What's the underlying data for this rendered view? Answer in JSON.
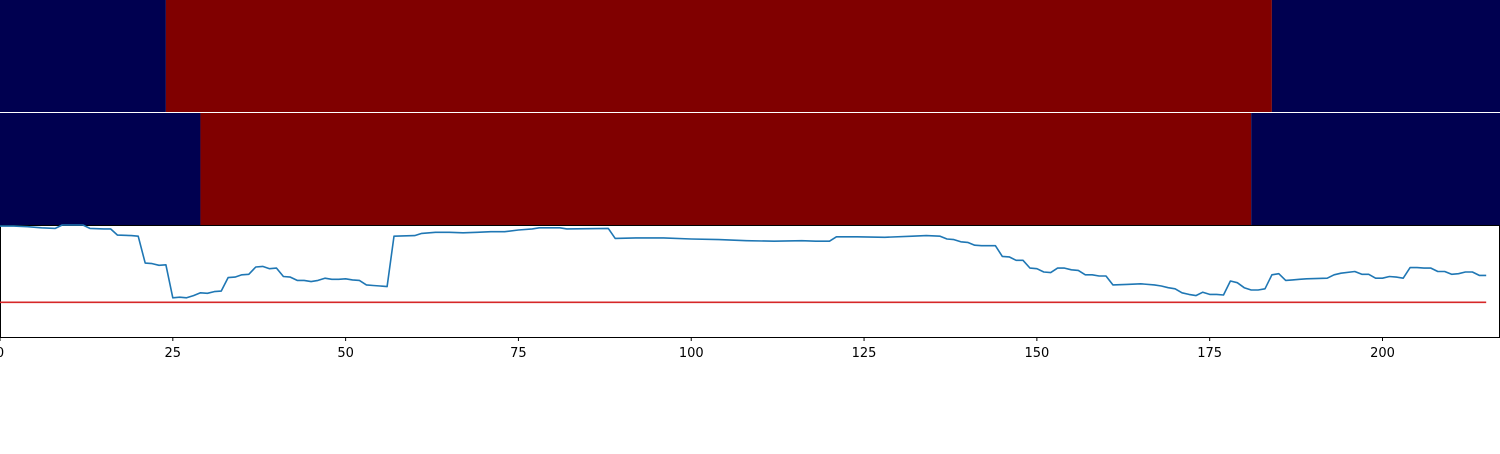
{
  "chart_data": {
    "type": "line",
    "title": "",
    "xlabel": "",
    "ylabel": "",
    "xlim": [
      0,
      217
    ],
    "ylim": [
      0,
      1
    ],
    "x_ticks": [
      {
        "value": 0,
        "label": "0"
      },
      {
        "value": 25,
        "label": "25"
      },
      {
        "value": 50,
        "label": "50"
      },
      {
        "value": 75,
        "label": "75"
      },
      {
        "value": 100,
        "label": "100"
      },
      {
        "value": 125,
        "label": "125"
      },
      {
        "value": 150,
        "label": "150"
      },
      {
        "value": 175,
        "label": "175"
      },
      {
        "value": 200,
        "label": "200"
      }
    ],
    "grid": false,
    "legend": "none",
    "state_bands": [
      {
        "segments": [
          {
            "start": 0,
            "end": 24,
            "state": "off",
            "color": "#000050"
          },
          {
            "start": 24,
            "end": 184,
            "state": "on",
            "color": "#800000"
          },
          {
            "start": 184,
            "end": 217,
            "state": "off",
            "color": "#000050"
          }
        ]
      },
      {
        "segments": [
          {
            "start": 0,
            "end": 29,
            "state": "off",
            "color": "#000050"
          },
          {
            "start": 29,
            "end": 181,
            "state": "on",
            "color": "#800000"
          },
          {
            "start": 181,
            "end": 217,
            "state": "off",
            "color": "#000050"
          }
        ]
      }
    ],
    "threshold": {
      "value": 0.31,
      "color": "#d62728"
    },
    "series": [
      {
        "color": "#1f77b4",
        "points": [
          [
            0,
            0.99
          ],
          [
            2,
            0.99
          ],
          [
            4,
            0.985
          ],
          [
            6,
            0.975
          ],
          [
            8,
            0.97
          ],
          [
            9,
            1.0
          ],
          [
            12,
            1.0
          ],
          [
            13,
            0.97
          ],
          [
            15,
            0.965
          ],
          [
            16,
            0.965
          ],
          [
            17,
            0.91
          ],
          [
            19,
            0.905
          ],
          [
            20,
            0.9
          ],
          [
            21,
            0.66
          ],
          [
            22,
            0.655
          ],
          [
            23,
            0.64
          ],
          [
            24,
            0.645
          ],
          [
            25,
            0.35
          ],
          [
            26,
            0.355
          ],
          [
            27,
            0.35
          ],
          [
            28,
            0.37
          ],
          [
            29,
            0.395
          ],
          [
            30,
            0.39
          ],
          [
            31,
            0.405
          ],
          [
            32,
            0.41
          ],
          [
            33,
            0.53
          ],
          [
            34,
            0.535
          ],
          [
            35,
            0.555
          ],
          [
            36,
            0.56
          ],
          [
            37,
            0.625
          ],
          [
            38,
            0.63
          ],
          [
            39,
            0.61
          ],
          [
            40,
            0.615
          ],
          [
            41,
            0.54
          ],
          [
            42,
            0.535
          ],
          [
            43,
            0.505
          ],
          [
            44,
            0.505
          ],
          [
            45,
            0.495
          ],
          [
            46,
            0.505
          ],
          [
            47,
            0.525
          ],
          [
            48,
            0.515
          ],
          [
            49,
            0.515
          ],
          [
            50,
            0.52
          ],
          [
            51,
            0.51
          ],
          [
            52,
            0.505
          ],
          [
            53,
            0.465
          ],
          [
            54,
            0.46
          ],
          [
            55,
            0.455
          ],
          [
            56,
            0.45
          ],
          [
            57,
            0.9
          ],
          [
            60,
            0.905
          ],
          [
            61,
            0.925
          ],
          [
            63,
            0.935
          ],
          [
            65,
            0.935
          ],
          [
            67,
            0.93
          ],
          [
            69,
            0.935
          ],
          [
            71,
            0.94
          ],
          [
            73,
            0.94
          ],
          [
            75,
            0.955
          ],
          [
            77,
            0.965
          ],
          [
            78,
            0.975
          ],
          [
            81,
            0.975
          ],
          [
            82,
            0.965
          ],
          [
            88,
            0.97
          ],
          [
            89,
            0.88
          ],
          [
            92,
            0.885
          ],
          [
            96,
            0.885
          ],
          [
            100,
            0.875
          ],
          [
            104,
            0.87
          ],
          [
            108,
            0.86
          ],
          [
            112,
            0.855
          ],
          [
            116,
            0.86
          ],
          [
            118,
            0.855
          ],
          [
            120,
            0.855
          ],
          [
            121,
            0.895
          ],
          [
            124,
            0.895
          ],
          [
            128,
            0.89
          ],
          [
            132,
            0.9
          ],
          [
            134,
            0.905
          ],
          [
            136,
            0.9
          ],
          [
            137,
            0.875
          ],
          [
            138,
            0.87
          ],
          [
            139,
            0.85
          ],
          [
            140,
            0.845
          ],
          [
            141,
            0.82
          ],
          [
            142,
            0.815
          ],
          [
            144,
            0.815
          ],
          [
            145,
            0.72
          ],
          [
            146,
            0.715
          ],
          [
            147,
            0.685
          ],
          [
            148,
            0.685
          ],
          [
            149,
            0.615
          ],
          [
            150,
            0.61
          ],
          [
            151,
            0.58
          ],
          [
            152,
            0.575
          ],
          [
            153,
            0.615
          ],
          [
            154,
            0.615
          ],
          [
            155,
            0.6
          ],
          [
            156,
            0.595
          ],
          [
            157,
            0.555
          ],
          [
            158,
            0.555
          ],
          [
            159,
            0.545
          ],
          [
            160,
            0.545
          ],
          [
            161,
            0.465
          ],
          [
            163,
            0.47
          ],
          [
            165,
            0.475
          ],
          [
            167,
            0.465
          ],
          [
            168,
            0.455
          ],
          [
            169,
            0.44
          ],
          [
            170,
            0.43
          ],
          [
            171,
            0.395
          ],
          [
            172,
            0.38
          ],
          [
            173,
            0.37
          ],
          [
            174,
            0.4
          ],
          [
            175,
            0.38
          ],
          [
            176,
            0.38
          ],
          [
            177,
            0.375
          ],
          [
            178,
            0.5
          ],
          [
            179,
            0.485
          ],
          [
            180,
            0.44
          ],
          [
            181,
            0.42
          ],
          [
            182,
            0.42
          ],
          [
            183,
            0.43
          ],
          [
            184,
            0.555
          ],
          [
            185,
            0.565
          ],
          [
            186,
            0.505
          ],
          [
            187,
            0.51
          ],
          [
            188,
            0.515
          ],
          [
            189,
            0.52
          ],
          [
            192,
            0.525
          ],
          [
            193,
            0.555
          ],
          [
            194,
            0.57
          ],
          [
            196,
            0.585
          ],
          [
            197,
            0.56
          ],
          [
            198,
            0.56
          ],
          [
            199,
            0.525
          ],
          [
            200,
            0.525
          ],
          [
            201,
            0.54
          ],
          [
            202,
            0.535
          ],
          [
            203,
            0.525
          ],
          [
            204,
            0.62
          ],
          [
            205,
            0.62
          ],
          [
            206,
            0.615
          ],
          [
            207,
            0.615
          ],
          [
            208,
            0.585
          ],
          [
            209,
            0.585
          ],
          [
            210,
            0.56
          ],
          [
            211,
            0.565
          ],
          [
            212,
            0.58
          ],
          [
            213,
            0.58
          ],
          [
            214,
            0.55
          ],
          [
            215,
            0.55
          ]
        ]
      }
    ]
  }
}
